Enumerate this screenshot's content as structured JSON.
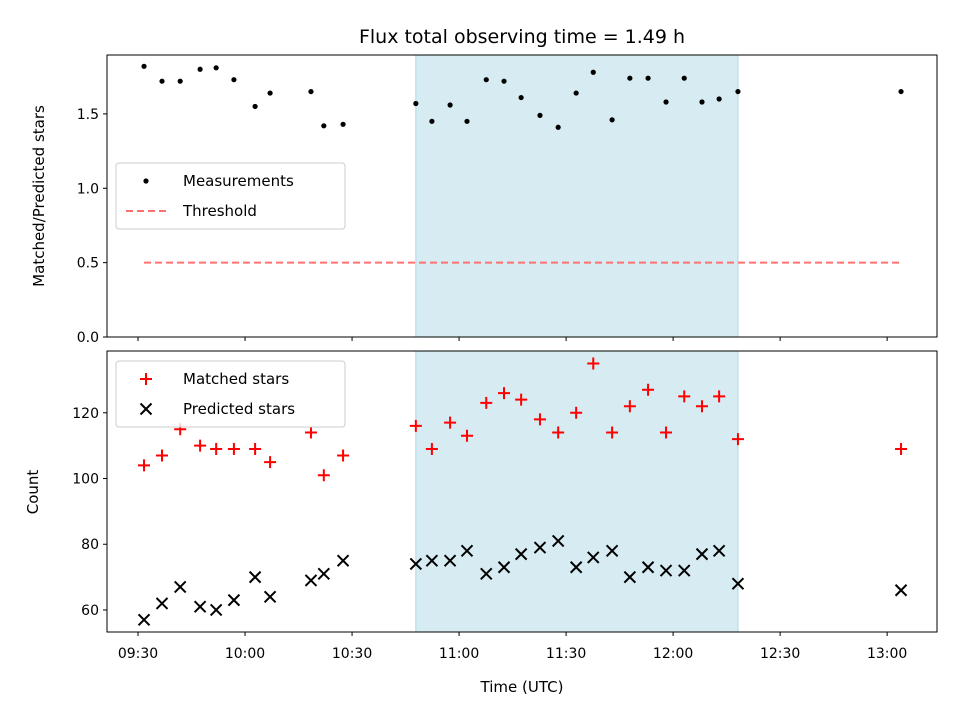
{
  "chart_data": {
    "type": "scatter",
    "title": "Flux total observing time = 1.49 h",
    "xlabel": "Time (UTC)",
    "x_tick_labels": [
      "09:30",
      "10:00",
      "10:30",
      "11:00",
      "11:30",
      "12:00",
      "12:30",
      "13:00"
    ],
    "x_ticks": [
      9.5,
      10.0,
      10.5,
      11.0,
      11.5,
      12.0,
      12.5,
      13.0
    ],
    "xlim": [
      9.355,
      13.233
    ],
    "x": [
      9.528,
      9.612,
      9.697,
      9.79,
      9.865,
      9.948,
      10.047,
      10.117,
      10.308,
      10.368,
      10.458,
      10.798,
      10.873,
      10.958,
      11.037,
      11.127,
      11.21,
      11.29,
      11.378,
      11.463,
      11.547,
      11.627,
      11.715,
      11.798,
      11.883,
      11.967,
      12.052,
      12.135,
      12.215,
      12.303,
      13.065
    ],
    "shaded_span": [
      10.798,
      12.303
    ],
    "shade_color": "#add8e6",
    "panels": [
      {
        "ylabel": "Matched/Predicted stars",
        "ylim": [
          0,
          1.896
        ],
        "y_ticks": [
          0,
          0.5,
          1.0,
          1.5
        ],
        "y_tick_labels": [
          "0.0",
          "0.5",
          "1.0",
          "1.5"
        ],
        "legend": "center-left",
        "series": [
          {
            "name": "Measurements",
            "marker": "dot",
            "color": "#000000",
            "values": [
              1.82,
              1.72,
              1.72,
              1.8,
              1.81,
              1.73,
              1.55,
              1.64,
              1.65,
              1.42,
              1.43,
              1.57,
              1.45,
              1.56,
              1.45,
              1.73,
              1.72,
              1.61,
              1.49,
              1.41,
              1.64,
              1.78,
              1.46,
              1.74,
              1.74,
              1.58,
              1.74,
              1.58,
              1.6,
              1.65,
              1.65
            ]
          },
          {
            "name": "Threshold",
            "marker": "dashed-line",
            "color": "#ff7070",
            "value": 0.5,
            "x_range": [
              9.528,
              13.065
            ]
          }
        ]
      },
      {
        "ylabel": "Count",
        "ylim": [
          53.3,
          138.8
        ],
        "y_ticks": [
          60,
          80,
          100,
          120
        ],
        "y_tick_labels": [
          "60",
          "80",
          "100",
          "120"
        ],
        "legend": "top-left",
        "series": [
          {
            "name": "Matched stars",
            "marker": "plus",
            "color": "#ff0000",
            "values": [
              104,
              107,
              115,
              110,
              109,
              109,
              109,
              105,
              114,
              101,
              107,
              116,
              109,
              117,
              113,
              123,
              126,
              124,
              118,
              114,
              120,
              135,
              114,
              122,
              127,
              114,
              125,
              122,
              125,
              112,
              109
            ]
          },
          {
            "name": "Predicted stars",
            "marker": "x",
            "color": "#000000",
            "values": [
              57,
              62,
              67,
              61,
              60,
              63,
              70,
              64,
              69,
              71,
              75,
              74,
              75,
              75,
              78,
              71,
              73,
              77,
              79,
              81,
              73,
              76,
              78,
              70,
              73,
              72,
              72,
              77,
              78,
              68,
              66
            ]
          }
        ]
      }
    ]
  }
}
